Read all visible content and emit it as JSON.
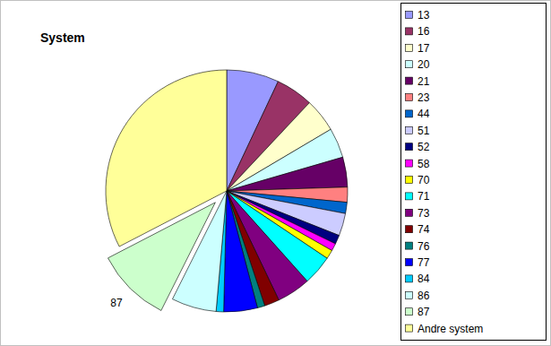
{
  "chart_data": {
    "type": "pie",
    "title": "System",
    "categories": [
      "13",
      "16",
      "17",
      "20",
      "21",
      "23",
      "44",
      "51",
      "52",
      "58",
      "70",
      "71",
      "73",
      "74",
      "76",
      "77",
      "84",
      "86",
      "87",
      "Andre system"
    ],
    "values": [
      7,
      5,
      4.5,
      4,
      4,
      2,
      1.5,
      3,
      1.2,
      1,
      1.2,
      4,
      4.5,
      2,
      1,
      4.5,
      1,
      6,
      10,
      32.6
    ],
    "colors": [
      "#9999ff",
      "#993366",
      "#ffffcc",
      "#ccffff",
      "#660066",
      "#ff8080",
      "#0066cc",
      "#ccccff",
      "#000080",
      "#ff00ff",
      "#ffff00",
      "#00ffff",
      "#800080",
      "#800000",
      "#008080",
      "#0000ff",
      "#00ccff",
      "#ccffff",
      "#ccffcc",
      "#ffff99"
    ],
    "legend": "right",
    "annotations": [
      {
        "text": "87"
      }
    ]
  }
}
